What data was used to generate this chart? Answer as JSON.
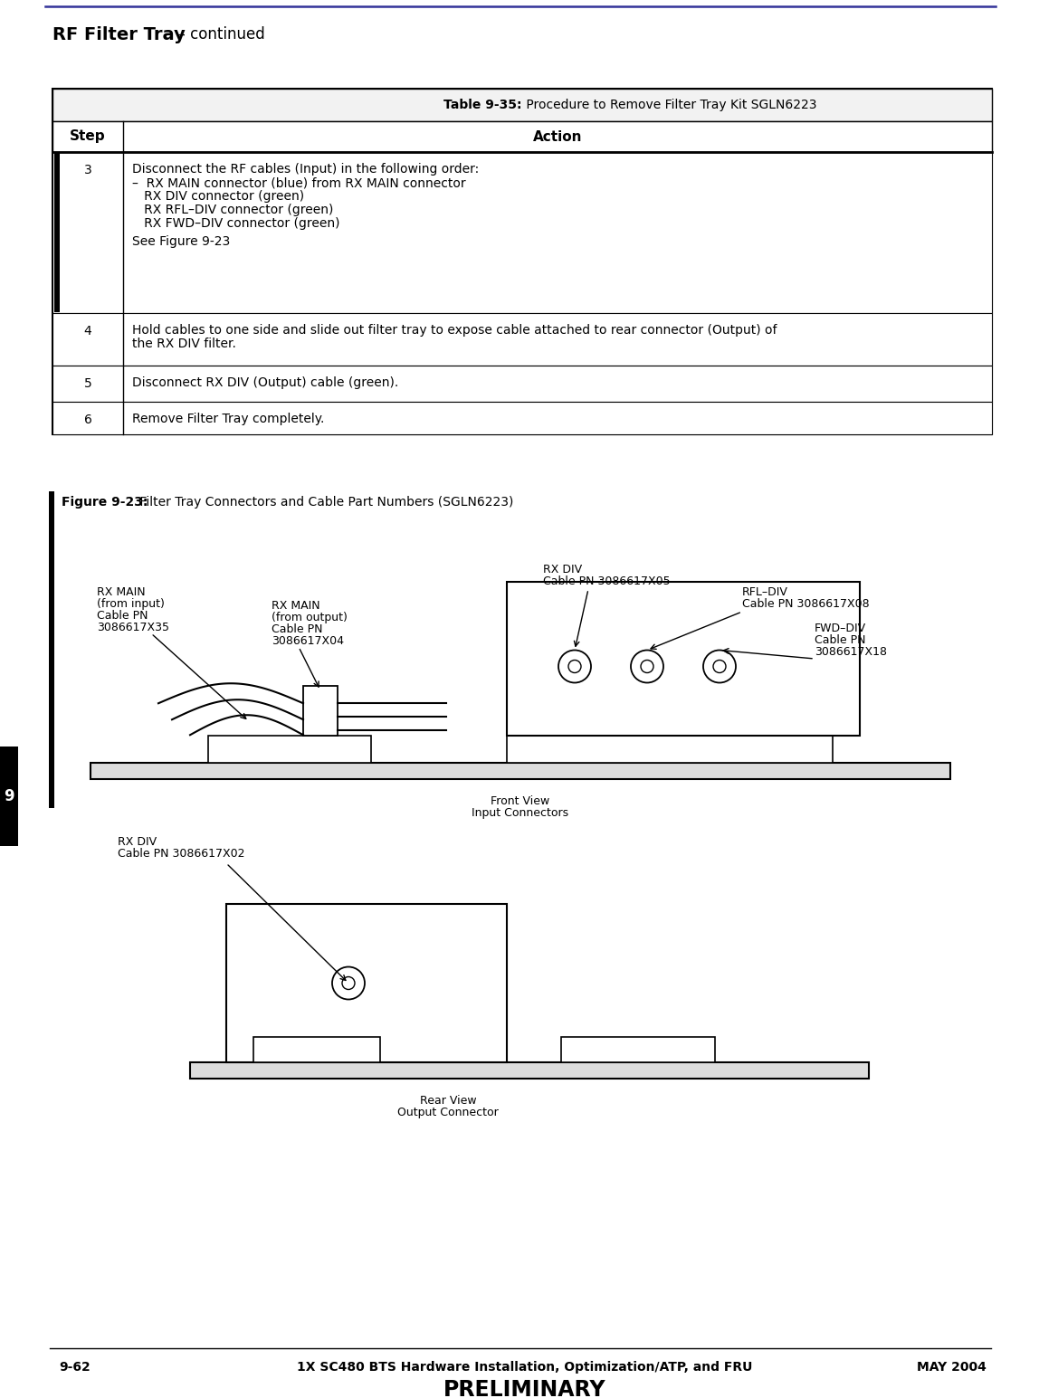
{
  "page_title_bold": "RF Filter Tray",
  "page_title_normal": "  – continued",
  "table_title_bold": "Table 9-35:",
  "table_title_normal": " Procedure to Remove Filter Tray Kit SGLN6223",
  "table_header_step": "Step",
  "table_header_action": "Action",
  "table_rows": [
    {
      "step": "3",
      "action_lines": [
        "Disconnect the RF cables (Input) in the following order:",
        "–  RX MAIN connector (blue) from RX MAIN connector",
        "   RX DIV connector (green)",
        "   RX RFL–DIV connector (green)",
        "   RX FWD–DIV connector (green)",
        "",
        "See Figure 9-23"
      ]
    },
    {
      "step": "4",
      "action_lines": [
        "Hold cables to one side and slide out filter tray to expose cable attached to rear connector (Output) of",
        "the RX DIV filter."
      ]
    },
    {
      "step": "5",
      "action_lines": [
        "Disconnect RX DIV (Output) cable (green)."
      ]
    },
    {
      "step": "6",
      "action_lines": [
        "Remove Filter Tray completely."
      ]
    }
  ],
  "figure_caption_bold": "Figure 9-23:",
  "figure_caption_normal": " Filter Tray Connectors and Cable Part Numbers (SGLN6223)",
  "labels": {
    "rx_div_top_l1": "RX DIV",
    "rx_div_top_l2": "Cable PN 3086617X05",
    "rfl_div_l1": "RFL–DIV",
    "rfl_div_l2": "Cable PN 3086617X08",
    "fwd_div_l1": "FWD–DIV",
    "fwd_div_l2": "Cable PN",
    "fwd_div_l3": "3086617X18",
    "rx_main_left_l1": "RX MAIN",
    "rx_main_left_l2": "(from input)",
    "rx_main_left_l3": "Cable PN",
    "rx_main_left_l4": "3086617X35",
    "rx_main_mid_l1": "RX MAIN",
    "rx_main_mid_l2": "(from output)",
    "rx_main_mid_l3": "Cable PN",
    "rx_main_mid_l4": "3086617X04",
    "front_view_l1": "Front View",
    "front_view_l2": "Input Connectors",
    "rx_div_bot_l1": "RX DIV",
    "rx_div_bot_l2": "Cable PN 3086617X02",
    "rear_view_l1": "Rear View",
    "rear_view_l2": "Output Connector"
  },
  "footer_left": "9-62",
  "footer_center": "1X SC480 BTS Hardware Installation, Optimization/ATP, and FRU",
  "footer_right": "MAY 2004",
  "footer_prelim": "PRELIMINARY",
  "tab_label": "9"
}
